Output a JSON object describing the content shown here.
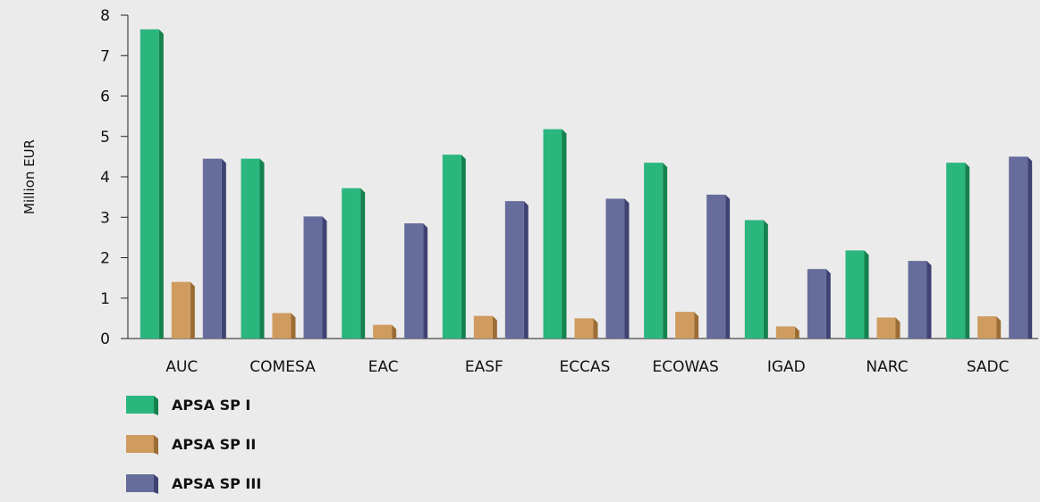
{
  "chart_data": {
    "type": "bar",
    "title": "",
    "xlabel": "",
    "ylabel": "Million EUR",
    "ylim": [
      0,
      8
    ],
    "yticks": [
      0,
      1,
      2,
      3,
      4,
      5,
      6,
      7,
      8
    ],
    "grid": false,
    "legend_position": "bottom-left",
    "categories": [
      "AUC",
      "COMESA",
      "EAC",
      "EASF",
      "ECCAS",
      "ECOWAS",
      "IGAD",
      "NARC",
      "SADC"
    ],
    "series": [
      {
        "name": "APSA SP I",
        "color": "#2bb67e",
        "side_color": "#15814f",
        "values": [
          7.65,
          4.45,
          3.72,
          4.55,
          5.18,
          4.35,
          2.93,
          2.18,
          4.35
        ]
      },
      {
        "name": "APSA SP II",
        "color": "#cf9b5f",
        "side_color": "#9b6d35",
        "values": [
          1.4,
          0.63,
          0.34,
          0.56,
          0.5,
          0.66,
          0.3,
          0.52,
          0.55
        ]
      },
      {
        "name": "APSA SP III",
        "color": "#666c9b",
        "side_color": "#3e4373",
        "values": [
          4.45,
          3.02,
          2.85,
          3.4,
          3.46,
          3.56,
          1.72,
          1.92,
          4.5
        ]
      }
    ]
  }
}
